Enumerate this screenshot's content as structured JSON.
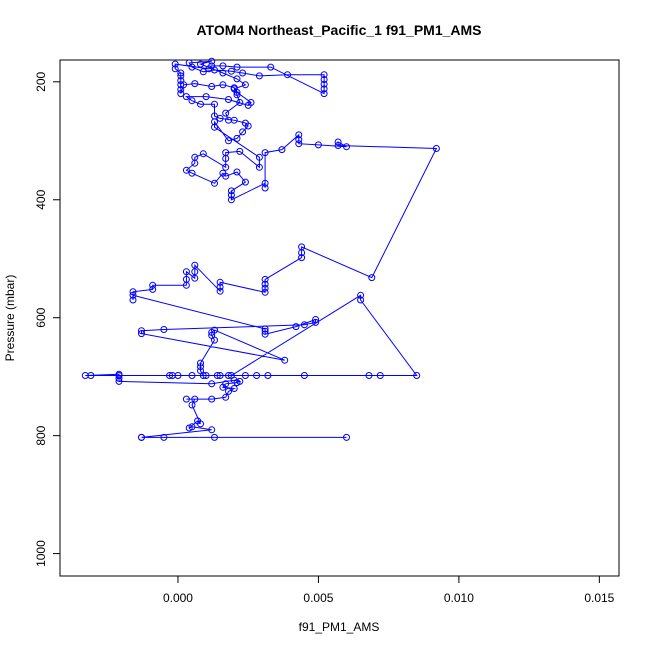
{
  "chart_data": {
    "type": "line",
    "title": "ATOM4 Northeast_Pacific_1 f91_PM1_AMS",
    "xlabel": "f91_PM1_AMS",
    "ylabel": "Pressure (mbar)",
    "xlim": [
      -0.0042,
      0.0157
    ],
    "ylim": [
      1038,
      163
    ],
    "y_inverted": true,
    "x_ticks": [
      0.0,
      0.005,
      0.01,
      0.015
    ],
    "x_tick_labels": [
      "0.000",
      "0.005",
      "0.010",
      "0.015"
    ],
    "y_ticks": [
      200,
      400,
      600,
      800,
      1000
    ],
    "y_tick_labels": [
      "200",
      "400",
      "600",
      "800",
      "1000"
    ],
    "grid": false,
    "series": [
      {
        "color": "#0000ff",
        "marker": "open-circle",
        "points": [
          [
            0.006,
            803
          ],
          [
            0.0013,
            803
          ],
          [
            -0.0005,
            803
          ],
          [
            -0.0013,
            803
          ],
          [
            -0.0013,
            803
          ],
          [
            0.0012,
            790
          ],
          [
            0.0005,
            785
          ],
          [
            0.0004,
            787
          ],
          [
            0.0007,
            775
          ],
          [
            0.0008,
            780
          ],
          [
            0.0005,
            748
          ],
          [
            0.0006,
            738
          ],
          [
            0.0003,
            738
          ],
          [
            0.0012,
            738
          ],
          [
            0.0017,
            735
          ],
          [
            0.0018,
            725
          ],
          [
            0.002,
            720
          ],
          [
            0.0016,
            718
          ],
          [
            0.0017,
            712
          ],
          [
            0.0021,
            710
          ],
          [
            0.0022,
            708
          ],
          [
            0.002,
            706
          ],
          [
            0.0012,
            712
          ],
          [
            -0.0021,
            708
          ],
          [
            -0.0021,
            703
          ],
          [
            -0.0021,
            698
          ],
          [
            -0.0021,
            696
          ],
          [
            -0.0033,
            698
          ],
          [
            -0.0031,
            698
          ],
          [
            -0.0003,
            698
          ],
          [
            -0.0002,
            698
          ],
          [
            0.0,
            698
          ],
          [
            0.0005,
            698
          ],
          [
            0.001,
            698
          ],
          [
            0.0014,
            698
          ],
          [
            0.0018,
            698
          ],
          [
            0.0024,
            698
          ],
          [
            0.0028,
            698
          ],
          [
            0.0032,
            698
          ],
          [
            0.0045,
            698
          ],
          [
            0.0068,
            698
          ],
          [
            0.0072,
            698
          ],
          [
            0.0085,
            698
          ],
          [
            0.0065,
            570
          ],
          [
            0.0065,
            562
          ],
          [
            0.0019,
            698
          ],
          [
            0.0015,
            698
          ],
          [
            0.0009,
            698
          ],
          [
            0.0008,
            690
          ],
          [
            0.0008,
            683
          ],
          [
            0.0008,
            677
          ],
          [
            0.0013,
            638
          ],
          [
            0.0012,
            630
          ],
          [
            0.0012,
            625
          ],
          [
            0.0013,
            621
          ],
          [
            0.0038,
            672
          ],
          [
            -0.0013,
            627
          ],
          [
            -0.0013,
            622
          ],
          [
            -0.0005,
            620
          ],
          [
            0.0045,
            612
          ],
          [
            0.0049,
            608
          ],
          [
            0.0049,
            603
          ],
          [
            0.0042,
            615
          ],
          [
            0.0031,
            628
          ],
          [
            0.0031,
            623
          ],
          [
            0.0031,
            619
          ],
          [
            -0.0016,
            562
          ],
          [
            -0.0016,
            570
          ],
          [
            -0.0016,
            556
          ],
          [
            -0.0009,
            552
          ],
          [
            -0.0009,
            545
          ],
          [
            0.0003,
            545
          ],
          [
            0.0003,
            535
          ],
          [
            0.0003,
            522
          ],
          [
            0.0006,
            533
          ],
          [
            0.0006,
            522
          ],
          [
            0.0006,
            511
          ],
          [
            0.0015,
            555
          ],
          [
            0.0015,
            548
          ],
          [
            0.0015,
            540
          ],
          [
            0.0031,
            557
          ],
          [
            0.0031,
            550
          ],
          [
            0.0031,
            543
          ],
          [
            0.0031,
            535
          ],
          [
            0.0044,
            498
          ],
          [
            0.0044,
            490
          ],
          [
            0.0044,
            480
          ],
          [
            0.0069,
            532
          ],
          [
            0.0092,
            313
          ],
          [
            0.0057,
            308
          ],
          [
            0.0057,
            302
          ],
          [
            0.006,
            310
          ],
          [
            0.005,
            307
          ],
          [
            0.0043,
            305
          ],
          [
            0.0043,
            298
          ],
          [
            0.0043,
            290
          ],
          [
            0.0037,
            315
          ],
          [
            0.0031,
            320
          ],
          [
            0.0031,
            380
          ],
          [
            0.0031,
            372
          ],
          [
            0.0019,
            400
          ],
          [
            0.0019,
            392
          ],
          [
            0.0019,
            385
          ],
          [
            0.0024,
            370
          ],
          [
            0.0021,
            353
          ],
          [
            0.0017,
            360
          ],
          [
            0.0016,
            355
          ],
          [
            0.0013,
            372
          ],
          [
            0.0005,
            355
          ],
          [
            0.0003,
            350
          ],
          [
            0.0006,
            338
          ],
          [
            0.0006,
            328
          ],
          [
            0.0009,
            322
          ],
          [
            0.0017,
            345
          ],
          [
            0.0017,
            330
          ],
          [
            0.0017,
            320
          ],
          [
            0.0022,
            318
          ],
          [
            0.0029,
            345
          ],
          [
            0.0029,
            328
          ],
          [
            0.0013,
            277
          ],
          [
            0.0013,
            268
          ],
          [
            0.0018,
            300
          ],
          [
            0.0021,
            296
          ],
          [
            0.0023,
            285
          ],
          [
            0.0025,
            275
          ],
          [
            0.0024,
            270
          ],
          [
            0.002,
            265
          ],
          [
            0.0015,
            262
          ],
          [
            0.0013,
            258
          ],
          [
            0.0013,
            238
          ],
          [
            0.0008,
            238
          ],
          [
            0.0005,
            232
          ],
          [
            0.0003,
            225
          ],
          [
            0.001,
            225
          ],
          [
            0.0018,
            230
          ],
          [
            0.0025,
            240
          ],
          [
            0.0026,
            235
          ],
          [
            0.0021,
            218
          ],
          [
            0.002,
            210
          ],
          [
            0.0016,
            205
          ],
          [
            0.0012,
            208
          ],
          [
            0.0006,
            203
          ],
          [
            0.0002,
            205
          ],
          [
            0.0001,
            220
          ],
          [
            0.0001,
            213
          ],
          [
            0.0001,
            205
          ],
          [
            0.0001,
            198
          ],
          [
            0.0001,
            190
          ],
          [
            0.0001,
            185
          ],
          [
            -0.0001,
            178
          ],
          [
            -0.0001,
            170
          ],
          [
            0.0011,
            178
          ],
          [
            0.0012,
            173
          ],
          [
            0.0016,
            173
          ],
          [
            0.0021,
            175
          ],
          [
            0.0033,
            175
          ],
          [
            0.0052,
            220
          ],
          [
            0.0052,
            212
          ],
          [
            0.0052,
            204
          ],
          [
            0.0052,
            196
          ],
          [
            0.0052,
            188
          ],
          [
            0.0039,
            188
          ],
          [
            0.0029,
            190
          ],
          [
            0.0023,
            185
          ],
          [
            0.0019,
            182
          ],
          [
            0.0013,
            180
          ],
          [
            0.0009,
            183
          ],
          [
            0.0005,
            175
          ],
          [
            0.0004,
            168
          ],
          [
            0.0012,
            165
          ],
          [
            0.0008,
            170
          ],
          [
            0.0016,
            185
          ],
          [
            0.0021,
            195
          ],
          [
            0.0024,
            205
          ],
          [
            0.002,
            212
          ],
          [
            0.0021,
            222
          ],
          [
            0.0022,
            235
          ],
          [
            0.0017,
            253
          ],
          [
            0.0018,
            265
          ]
        ]
      }
    ]
  }
}
